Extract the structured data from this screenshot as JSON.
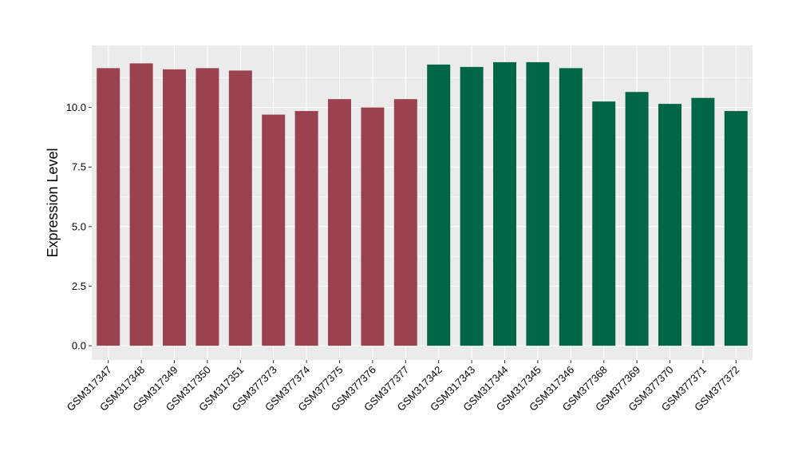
{
  "chart_data": {
    "type": "bar",
    "title": "",
    "xlabel": "",
    "ylabel": "Expression Level",
    "ylim": [
      -0.6,
      12.6
    ],
    "yticks": [
      0.0,
      2.5,
      5.0,
      7.5,
      10.0
    ],
    "ytick_labels": [
      "0.0",
      "2.5",
      "5.0",
      "7.5",
      "10.0"
    ],
    "grid": true,
    "legend": "none",
    "categories": [
      "GSM317347",
      "GSM317348",
      "GSM317349",
      "GSM317350",
      "GSM317351",
      "GSM377373",
      "GSM377374",
      "GSM377375",
      "GSM377376",
      "GSM377377",
      "GSM317342",
      "GSM317343",
      "GSM317344",
      "GSM317345",
      "GSM317346",
      "GSM377368",
      "GSM377369",
      "GSM377370",
      "GSM377371",
      "GSM377372"
    ],
    "values": [
      11.65,
      11.85,
      11.6,
      11.65,
      11.55,
      9.7,
      9.85,
      10.35,
      10.0,
      10.35,
      11.8,
      11.7,
      11.9,
      11.9,
      11.65,
      10.25,
      10.65,
      10.15,
      10.4,
      9.85
    ],
    "bar_colors": [
      "#9B424F",
      "#9B424F",
      "#9B424F",
      "#9B424F",
      "#9B424F",
      "#9B424F",
      "#9B424F",
      "#9B424F",
      "#9B424F",
      "#9B424F",
      "#006746",
      "#006746",
      "#006746",
      "#006746",
      "#006746",
      "#006746",
      "#006746",
      "#006746",
      "#006746",
      "#006746"
    ],
    "panel_background": "#EBEBEB",
    "grid_color": "#FFFFFF"
  }
}
